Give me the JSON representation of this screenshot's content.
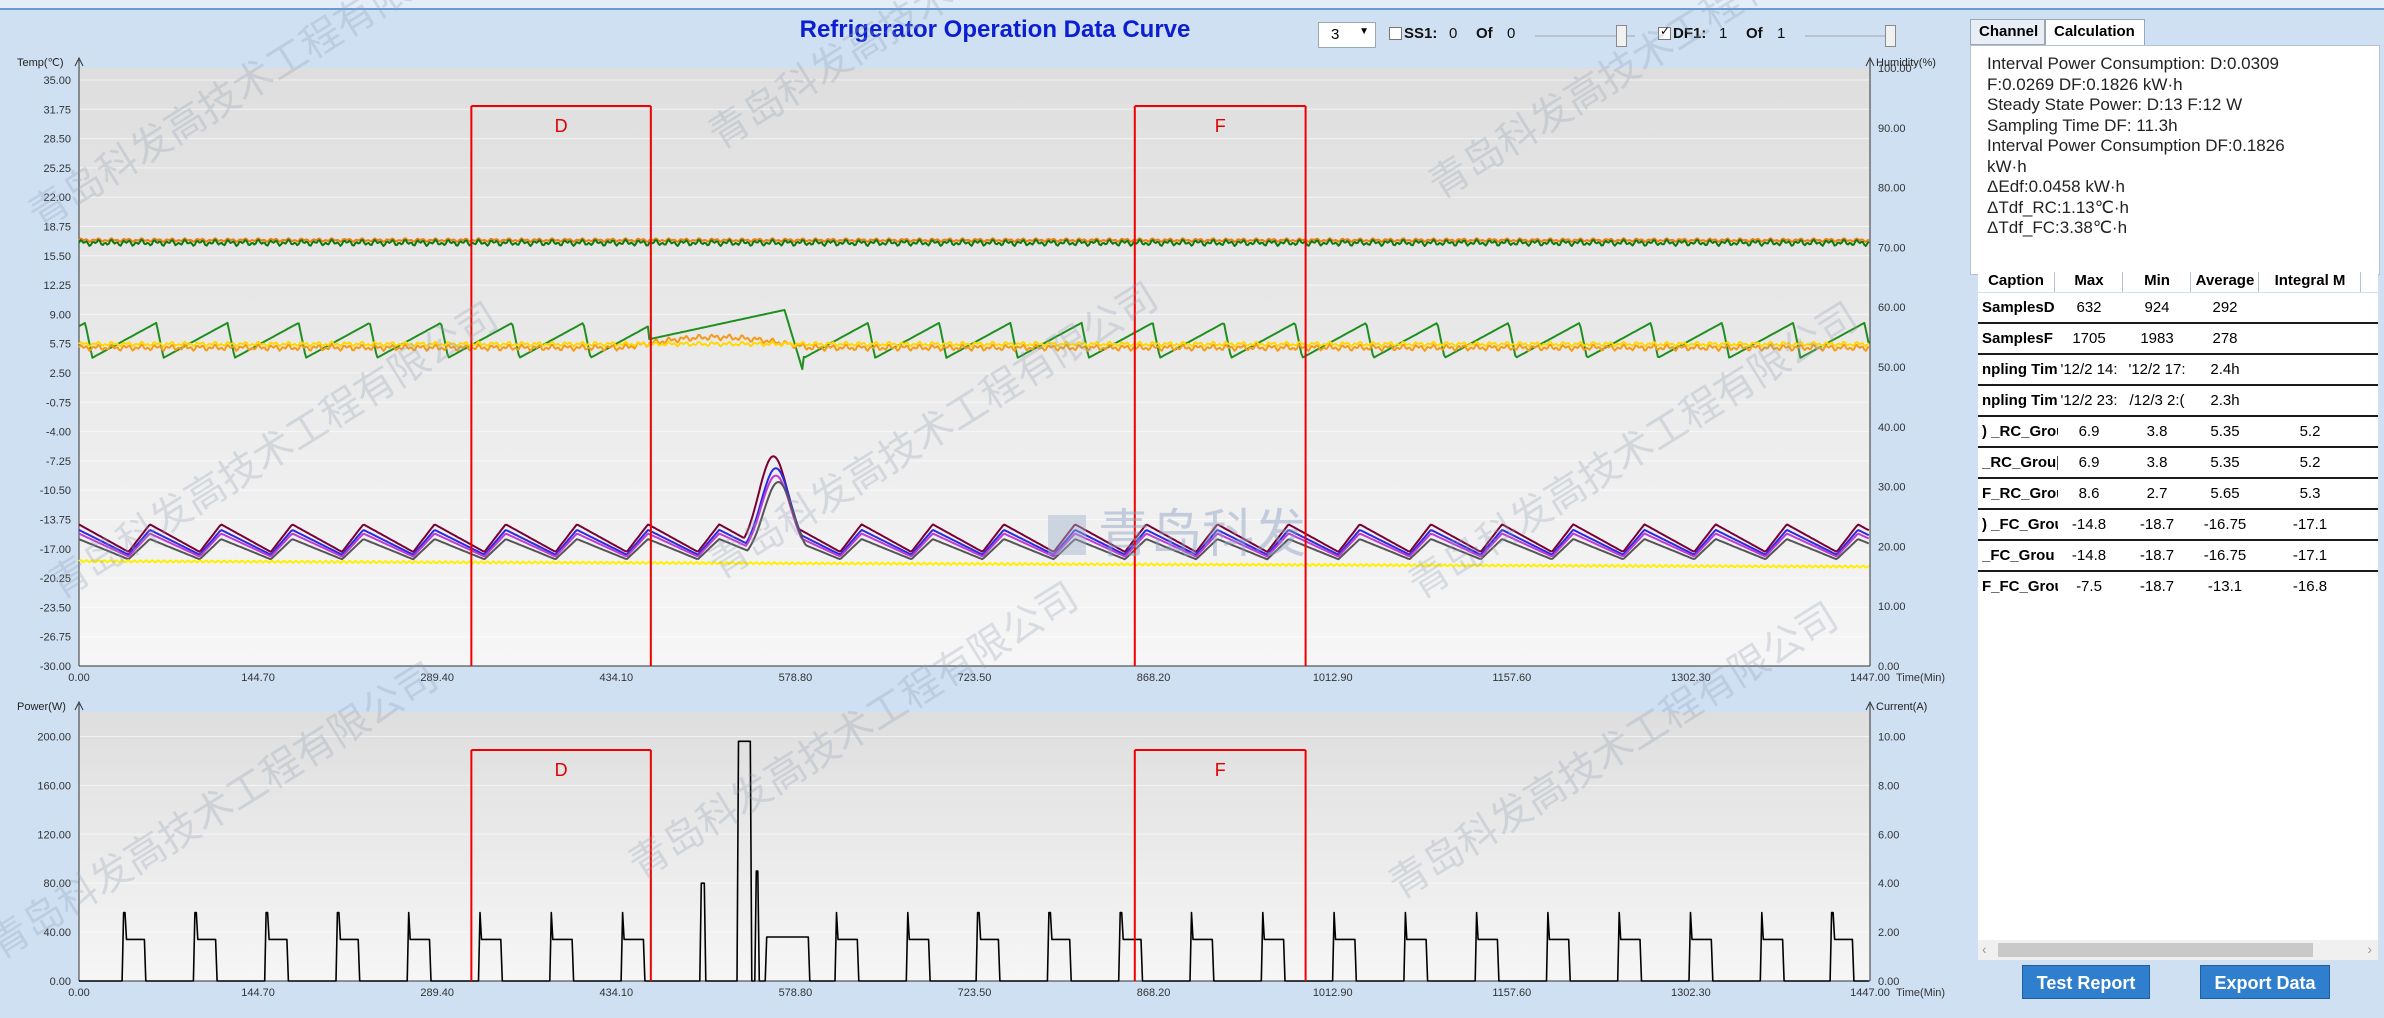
{
  "title": "Refrigerator Operation Data Curve",
  "controls": {
    "select_value": "3",
    "ss1_label": "SS1:",
    "ss1_value": "0",
    "ss1_of": "Of",
    "ss1_total": "0",
    "df1_label": "DF1:",
    "df1_value": "1",
    "df1_of": "Of",
    "df1_total": "1"
  },
  "watermark": "青岛科发高技术工程有限公司",
  "logo_text": "青岛科发",
  "tabs": [
    "Channel",
    "Calculation"
  ],
  "active_tab": "Calculation",
  "calculation": {
    "lines": [
      "Interval Power Consumption:   D:0.0309",
      "F:0.0269  DF:0.1826  kW·h",
      "Steady State Power:   D:13  F:12  W",
      "Sampling Time DF: 11.3h",
      "Interval Power Consumption DF:0.1826",
      "kW·h",
      "ΔEdf:0.0458  kW·h",
      "ΔTdf_RC:1.13℃·h",
      "ΔTdf_FC:3.38℃·h"
    ]
  },
  "table": {
    "headers": [
      "Caption",
      "Max",
      "Min",
      "Average",
      "Integral M"
    ],
    "rows": [
      [
        "SamplesD",
        "632",
        "924",
        "292",
        ""
      ],
      [
        "SamplesF",
        "1705",
        "1983",
        "278",
        ""
      ],
      [
        "npling Tim",
        "'12/2 14:",
        "'12/2 17:",
        "2.4h",
        ""
      ],
      [
        "npling Tim",
        "'12/2 23:",
        "/12/3 2:(",
        "2.3h",
        ""
      ],
      [
        ") _RC_Grou",
        "6.9",
        "3.8",
        "5.35",
        "5.2"
      ],
      [
        "_RC_Grou|",
        "6.9",
        "3.8",
        "5.35",
        "5.2"
      ],
      [
        "F_RC_Grou",
        "8.6",
        "2.7",
        "5.65",
        "5.3"
      ],
      [
        ") _FC_Grou|",
        "-14.8",
        "-18.7",
        "-16.75",
        "-17.1"
      ],
      [
        "_FC_Grou",
        "-14.8",
        "-18.7",
        "-16.75",
        "-17.1"
      ],
      [
        "F_FC_Grou",
        "-7.5",
        "-18.7",
        "-13.1",
        "-16.8"
      ]
    ]
  },
  "buttons": {
    "test_report": "Test Report",
    "export_data": "Export Data"
  },
  "chart_data": [
    {
      "type": "line",
      "ylabel": "Temp(℃)",
      "y2label": "Humidity(%)",
      "xlabel": "Time(Min)",
      "x_ticks": [
        "0.00",
        "144.70",
        "289.40",
        "434.10",
        "578.80",
        "723.50",
        "868.20",
        "1012.90",
        "1157.60",
        "1302.30",
        "1447.00"
      ],
      "y_ticks": [
        "35.00",
        "31.75",
        "28.50",
        "25.25",
        "22.00",
        "18.75",
        "15.50",
        "12.25",
        "9.00",
        "5.75",
        "2.50",
        "-0.75",
        "-4.00",
        "-7.25",
        "-10.50",
        "-13.75",
        "-17.00",
        "-20.25",
        "-23.50",
        "-26.75",
        "-30.00"
      ],
      "y2_ticks": [
        "100.00",
        "90.00",
        "80.00",
        "70.00",
        "60.00",
        "50.00",
        "40.00",
        "30.00",
        "20.00",
        "10.00",
        "0.00"
      ],
      "xlim": [
        0,
        1447
      ],
      "ylim": [
        -30,
        35
      ],
      "y2lim": [
        0,
        100
      ],
      "regions": [
        {
          "label": "D",
          "x_start": 317,
          "x_end": 462
        },
        {
          "label": "F",
          "x_start": 853,
          "x_end": 991
        }
      ],
      "series": [
        {
          "color": "#f07f16",
          "kind": "flat",
          "base": 16.3,
          "amp": 0.2
        },
        {
          "color": "#0d7a0d",
          "kind": "flat",
          "base": 16.0,
          "amp": 0.35
        },
        {
          "color": "#1f8f1f",
          "kind": "sawtooth",
          "low": 3.5,
          "high": 7.3,
          "period": 57.5,
          "phase": 5,
          "event": {
            "start": 460,
            "end": 585,
            "peak": 8.7
          }
        },
        {
          "color": "#f59a1a",
          "kind": "flat",
          "base": 4.6,
          "amp": 0.35,
          "event": {
            "start": 440,
            "end": 590,
            "peak": 6.5
          }
        },
        {
          "color": "#ffd800",
          "kind": "flat",
          "base": 5.0,
          "amp": 0.25
        },
        {
          "color": "#7a0033",
          "kind": "wave",
          "low": -17.6,
          "high": -14.6,
          "period": 57.5,
          "phase": 40,
          "spike": {
            "x": 561,
            "peak": -7.2
          }
        },
        {
          "color": "#2b2be0",
          "kind": "wave",
          "low": -17.9,
          "high": -15.2,
          "period": 57.5,
          "phase": 40,
          "spike": {
            "x": 563,
            "peak": -8.5
          }
        },
        {
          "color": "#c03ad6",
          "kind": "wave",
          "low": -18.1,
          "high": -15.6,
          "period": 57.5,
          "phase": 40,
          "spike": {
            "x": 563,
            "peak": -9.3
          }
        },
        {
          "color": "#555555",
          "kind": "wave",
          "low": -18.4,
          "high": -16.2,
          "period": 57.5,
          "phase": 40,
          "spike": {
            "x": 565,
            "peak": -10.0
          }
        },
        {
          "color": "#ffef00",
          "kind": "drift",
          "start": -18.6,
          "end": -19.2
        }
      ]
    },
    {
      "type": "line",
      "ylabel": "Power(W)",
      "y2label": "Current(A)",
      "xlabel": "Time(Min)",
      "x_ticks": [
        "0.00",
        "144.70",
        "289.40",
        "434.10",
        "578.80",
        "723.50",
        "868.20",
        "1012.90",
        "1157.60",
        "1302.30",
        "1447.00"
      ],
      "y_ticks": [
        "200.00",
        "160.00",
        "120.00",
        "80.00",
        "40.00",
        "0.00"
      ],
      "y2_ticks": [
        "10.00",
        "8.00",
        "6.00",
        "4.00",
        "2.00",
        "0.00"
      ],
      "xlim": [
        0,
        1447
      ],
      "ylim": [
        0,
        220
      ],
      "y2lim": [
        0,
        11
      ],
      "regions": [
        {
          "label": "D",
          "x_start": 317,
          "x_end": 462
        },
        {
          "label": "F",
          "x_start": 853,
          "x_end": 991
        }
      ],
      "series": [
        {
          "color": "#000000",
          "kind": "pulses",
          "period": 57.5,
          "phase": 36,
          "on": 18,
          "spike": 56,
          "level": 34,
          "defrost": {
            "start": 532,
            "end": 543,
            "level": 196,
            "dip": 505
          }
        }
      ]
    }
  ]
}
